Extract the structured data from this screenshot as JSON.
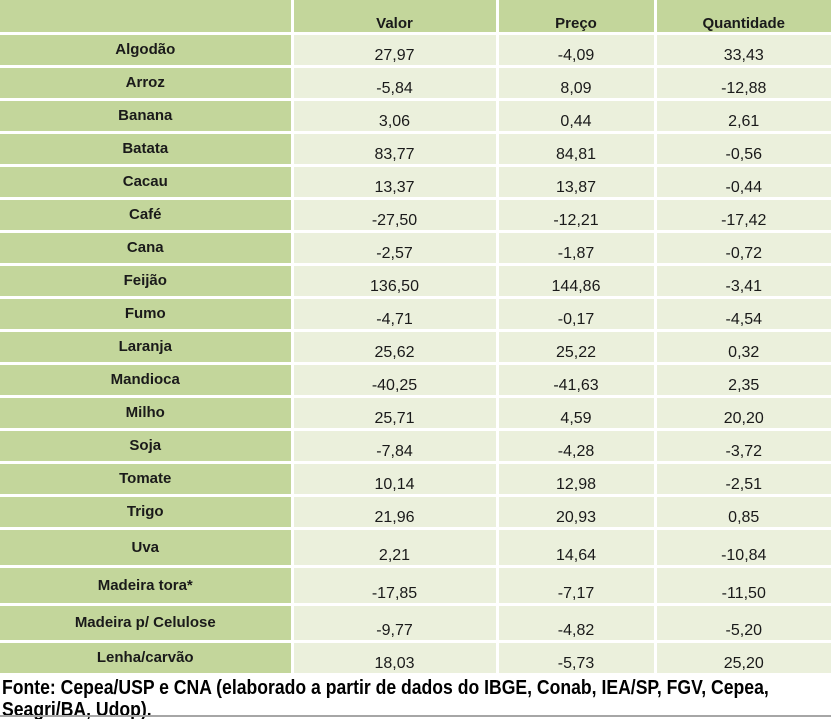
{
  "table": {
    "columns": [
      "Valor",
      "Preço",
      "Quantidade"
    ],
    "rows": [
      {
        "label": "Algodão",
        "valor": "27,97",
        "preco": "-4,09",
        "quantidade": "33,43"
      },
      {
        "label": "Arroz",
        "valor": "-5,84",
        "preco": "8,09",
        "quantidade": "-12,88"
      },
      {
        "label": "Banana",
        "valor": "3,06",
        "preco": "0,44",
        "quantidade": "2,61"
      },
      {
        "label": "Batata",
        "valor": "83,77",
        "preco": "84,81",
        "quantidade": "-0,56"
      },
      {
        "label": "Cacau",
        "valor": "13,37",
        "preco": "13,87",
        "quantidade": "-0,44"
      },
      {
        "label": "Café",
        "valor": "-27,50",
        "preco": "-12,21",
        "quantidade": "-17,42"
      },
      {
        "label": "Cana",
        "valor": "-2,57",
        "preco": "-1,87",
        "quantidade": "-0,72"
      },
      {
        "label": "Feijão",
        "valor": "136,50",
        "preco": "144,86",
        "quantidade": "-3,41"
      },
      {
        "label": "Fumo",
        "valor": "-4,71",
        "preco": "-0,17",
        "quantidade": "-4,54"
      },
      {
        "label": "Laranja",
        "valor": "25,62",
        "preco": "25,22",
        "quantidade": "0,32"
      },
      {
        "label": "Mandioca",
        "valor": "-40,25",
        "preco": "-41,63",
        "quantidade": "2,35"
      },
      {
        "label": "Milho",
        "valor": "25,71",
        "preco": "4,59",
        "quantidade": "20,20"
      },
      {
        "label": "Soja",
        "valor": "-7,84",
        "preco": "-4,28",
        "quantidade": "-3,72"
      },
      {
        "label": "Tomate",
        "valor": "10,14",
        "preco": "12,98",
        "quantidade": "-2,51"
      },
      {
        "label": "Trigo",
        "valor": "21,96",
        "preco": "20,93",
        "quantidade": "0,85"
      },
      {
        "label": "Uva",
        "valor": "2,21",
        "preco": "14,64",
        "quantidade": "-10,84"
      },
      {
        "label": "Madeira tora*",
        "valor": "-17,85",
        "preco": "-7,17",
        "quantidade": "-11,50"
      },
      {
        "label": "Madeira p/ Celulose",
        "valor": "-9,77",
        "preco": "-4,82",
        "quantidade": "-5,20"
      },
      {
        "label": "Lenha/carvão",
        "valor": "18,03",
        "preco": "-5,73",
        "quantidade": "25,20"
      }
    ]
  },
  "footer": {
    "line1": "Fonte: Cepea/USP e CNA (elaborado a partir de dados do IBGE, Conab, IEA/SP, FGV, Cepea,",
    "line2": "Seagri/BA, Udop)."
  },
  "colors": {
    "label_green": "#c3d69b",
    "cell_light": "#ebf0dc",
    "grid_white": "#ffffff",
    "text": "#1a1a1a",
    "bottom_rule_gray": "#a6a6a6"
  },
  "chart_data": {
    "type": "table",
    "columns": [
      "",
      "Valor",
      "Preço",
      "Quantidade"
    ],
    "rows": [
      [
        "Algodão",
        27.97,
        -4.09,
        33.43
      ],
      [
        "Arroz",
        -5.84,
        8.09,
        -12.88
      ],
      [
        "Banana",
        3.06,
        0.44,
        2.61
      ],
      [
        "Batata",
        83.77,
        84.81,
        -0.56
      ],
      [
        "Cacau",
        13.37,
        13.87,
        -0.44
      ],
      [
        "Café",
        -27.5,
        -12.21,
        -17.42
      ],
      [
        "Cana",
        -2.57,
        -1.87,
        -0.72
      ],
      [
        "Feijão",
        136.5,
        144.86,
        -3.41
      ],
      [
        "Fumo",
        -4.71,
        -0.17,
        -4.54
      ],
      [
        "Laranja",
        25.62,
        25.22,
        0.32
      ],
      [
        "Mandioca",
        -40.25,
        -41.63,
        2.35
      ],
      [
        "Milho",
        25.71,
        4.59,
        20.2
      ],
      [
        "Soja",
        -7.84,
        -4.28,
        -3.72
      ],
      [
        "Tomate",
        10.14,
        12.98,
        -2.51
      ],
      [
        "Trigo",
        21.96,
        20.93,
        0.85
      ],
      [
        "Uva",
        2.21,
        14.64,
        -10.84
      ],
      [
        "Madeira tora*",
        -17.85,
        -7.17,
        -11.5
      ],
      [
        "Madeira p/ Celulose",
        -9.77,
        -4.82,
        -5.2
      ],
      [
        "Lenha/carvão",
        18.03,
        -5.73,
        25.2
      ]
    ],
    "source_note": "Fonte: Cepea/USP e CNA (elaborado a partir de dados do IBGE, Conab, IEA/SP, FGV, Cepea, Seagri/BA, Udop)."
  }
}
